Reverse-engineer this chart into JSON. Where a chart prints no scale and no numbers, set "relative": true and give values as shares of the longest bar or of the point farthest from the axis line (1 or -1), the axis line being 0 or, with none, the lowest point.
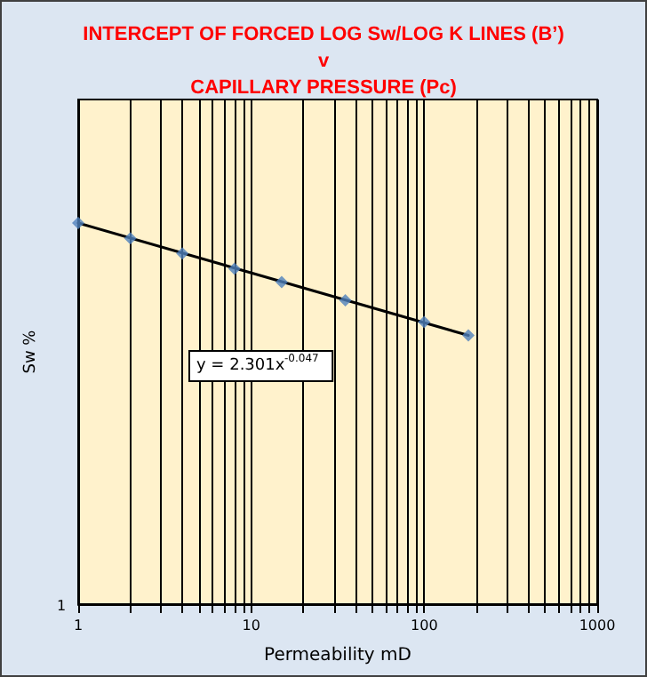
{
  "chart_data": {
    "type": "scatter",
    "title": "INTERCEPT OF FORCED LOG Sw/LOG K LINES (B’)\nv\nCAPILLARY PRESSURE (Pc)",
    "xlabel": "Permeability mD",
    "ylabel": "Sw %",
    "relative": true,
    "log": "x",
    "xlim": [
      1,
      1000
    ],
    "xticks": [
      1,
      10,
      100,
      1000
    ],
    "grid": "x",
    "series": [
      {
        "color": "#4f81bd",
        "marker": "diamond",
        "x": [
          1,
          2,
          4,
          8,
          15,
          35,
          100,
          180
        ],
        "values": [
          1,
          0.96,
          0.92,
          0.88,
          0.845,
          0.797,
          0.74,
          0.705
        ]
      },
      {
        "type": "line",
        "color": "#000000",
        "marker": "none",
        "line_style": "solid",
        "x": [
          1,
          180
        ],
        "values": [
          1,
          0.705
        ]
      }
    ],
    "annotations": [
      "y = 2.301x$^{-0.047}$",
      "1"
    ]
  }
}
